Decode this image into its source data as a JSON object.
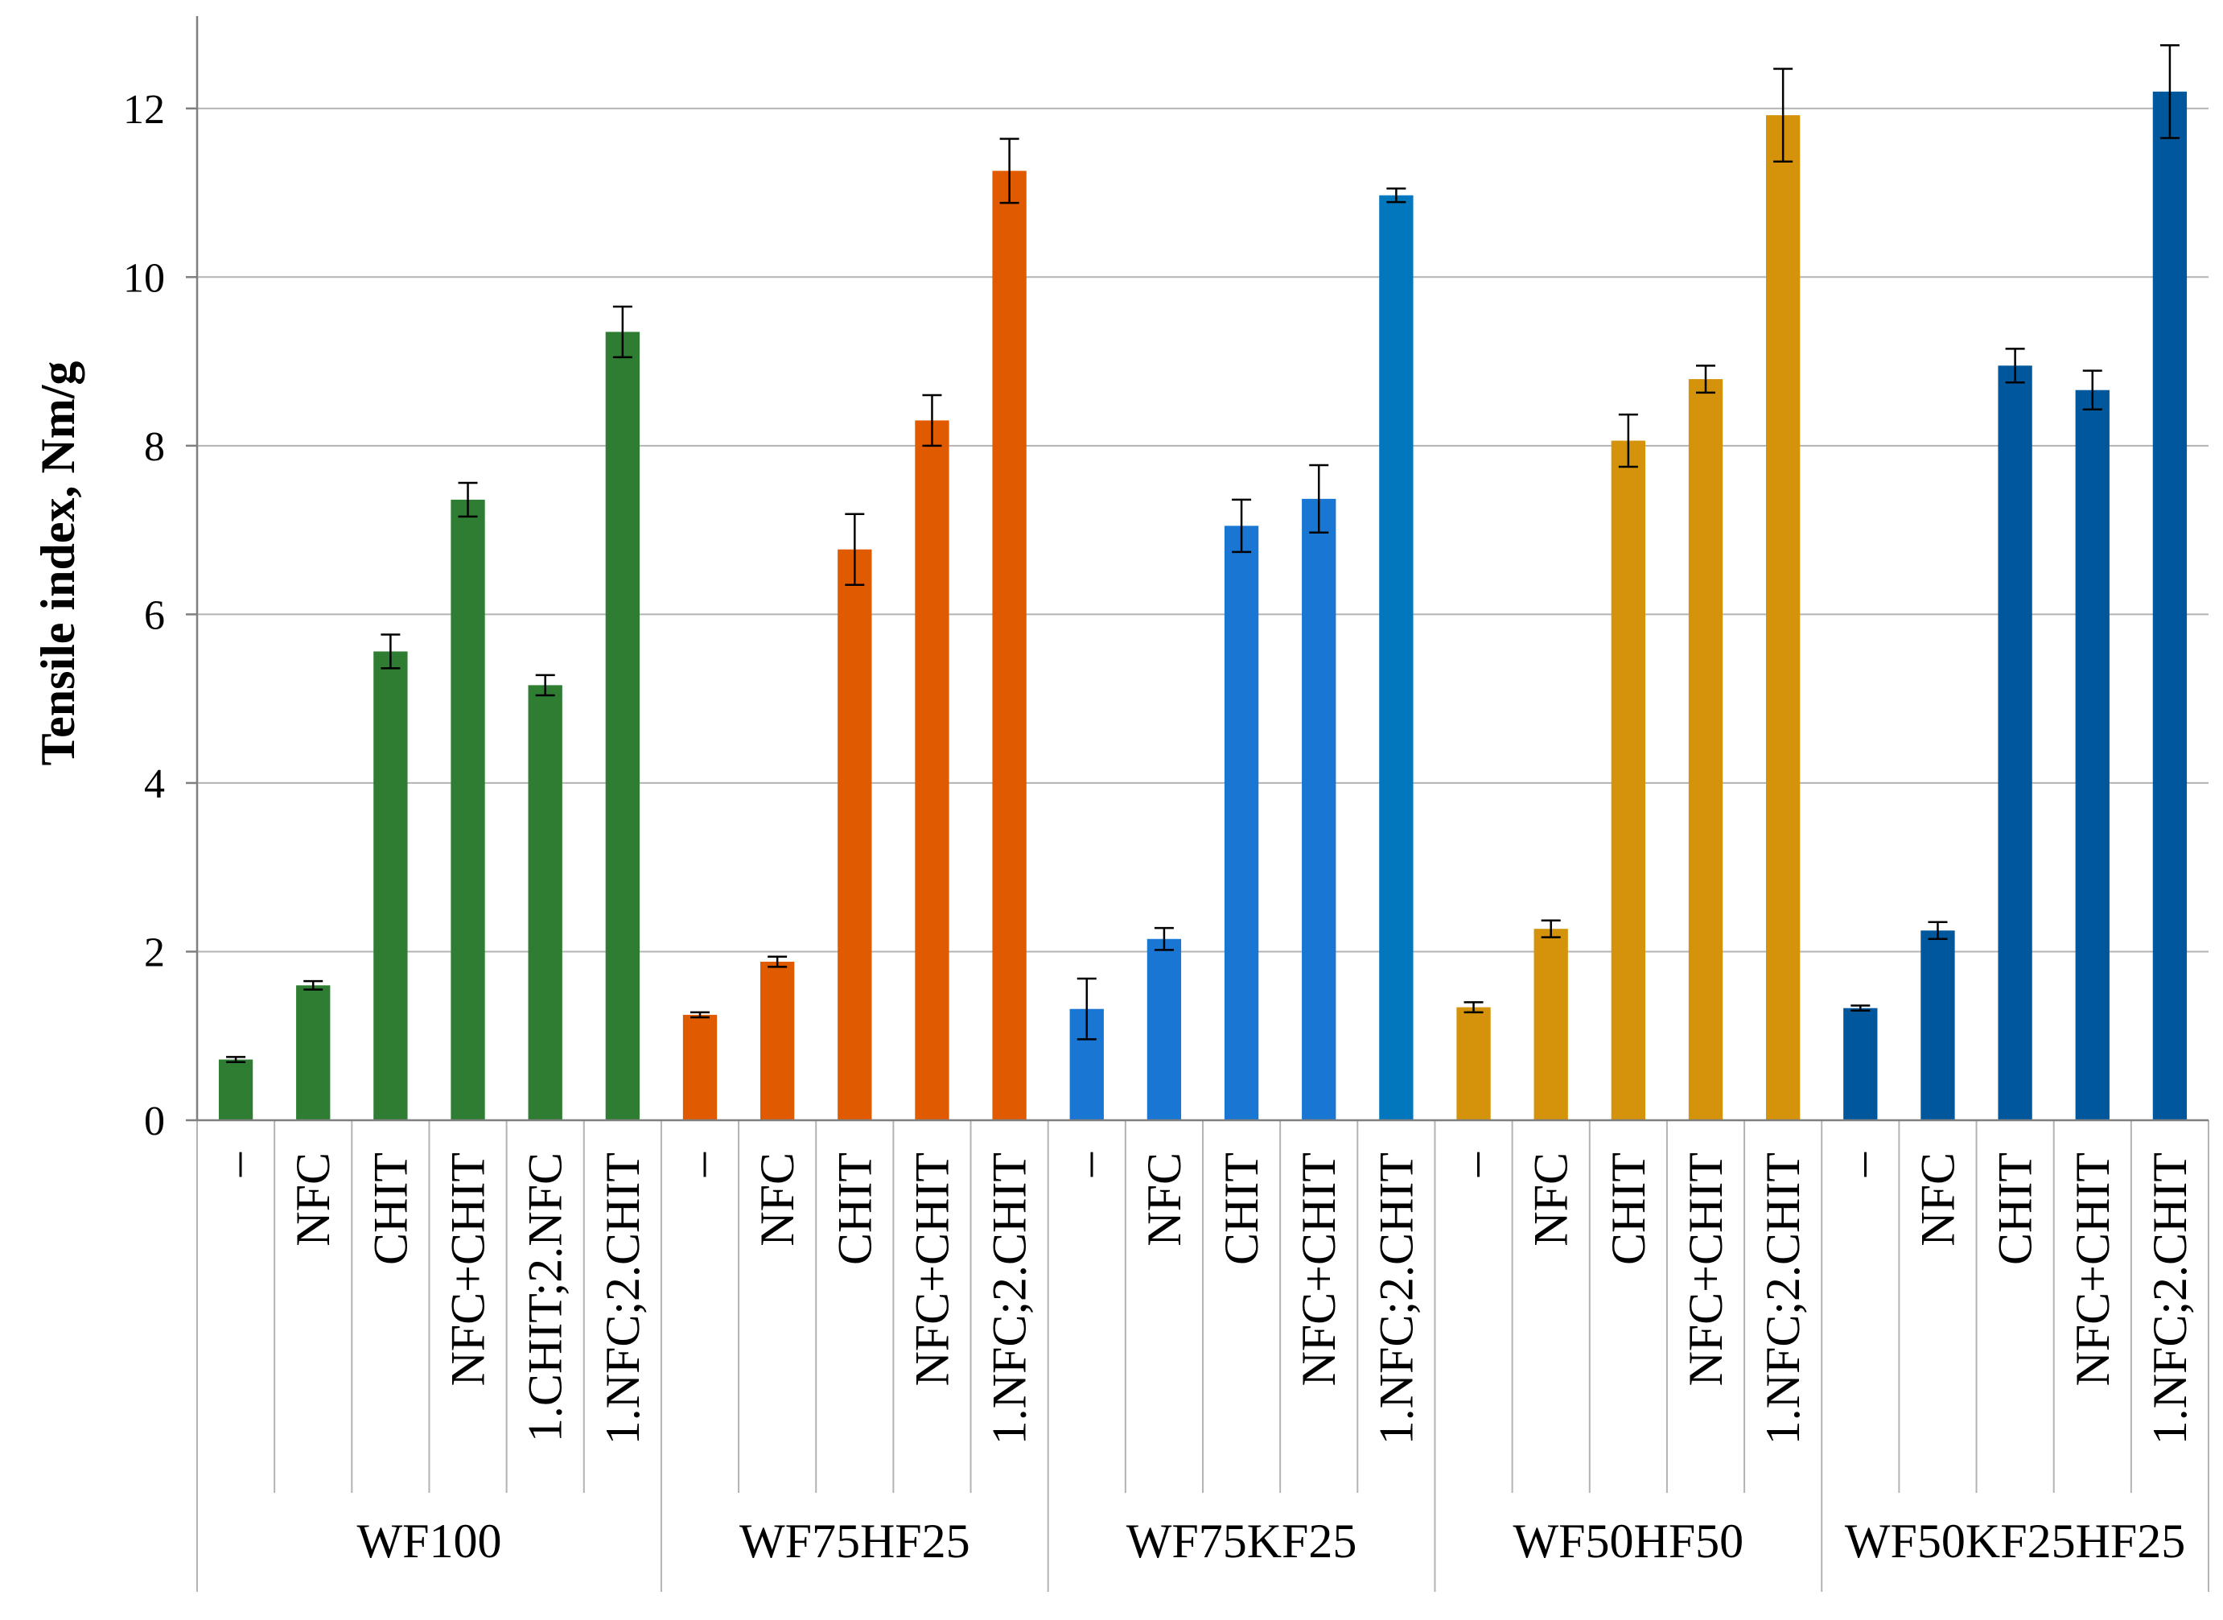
{
  "chart_data": {
    "type": "bar",
    "title": "",
    "xlabel": "",
    "ylabel": "Tensile index, Nm/g",
    "ylim": [
      0,
      13
    ],
    "yticks": [
      0,
      2,
      4,
      6,
      8,
      10,
      12
    ],
    "grid": "horizontal",
    "legend": "none",
    "groups": [
      {
        "name": "WF100",
        "color": "#2e7d32",
        "categories": [
          "–",
          "NFC",
          "CHIT",
          "NFC+CHIT",
          "1.CHIT;2.NFC",
          "1.NFC;2.CHIT"
        ],
        "values": [
          0.72,
          1.6,
          5.56,
          7.36,
          5.16,
          9.35
        ],
        "errors": [
          0.03,
          0.05,
          0.2,
          0.2,
          0.12,
          0.3
        ]
      },
      {
        "name": "WF75HF25",
        "color": "#e05a00",
        "categories": [
          "–",
          "NFC",
          "CHIT",
          "NFC+CHIT",
          "1.NFC;2.CHIT"
        ],
        "values": [
          1.25,
          1.88,
          6.77,
          8.3,
          11.26
        ],
        "errors": [
          0.03,
          0.06,
          0.42,
          0.3,
          0.38
        ]
      },
      {
        "name": "WF75KF25",
        "color": "#1976d2",
        "colors": [
          "#1976d2",
          "#1976d2",
          "#1976d2",
          "#1976d2",
          "#0277bd"
        ],
        "categories": [
          "–",
          "NFC",
          "CHIT",
          "NFC+CHIT",
          "1.NFC;2.CHIT"
        ],
        "values": [
          1.32,
          2.15,
          7.05,
          7.37,
          10.97
        ],
        "errors": [
          0.36,
          0.13,
          0.31,
          0.4,
          0.08
        ]
      },
      {
        "name": "WF50HF50",
        "color": "#d4930a",
        "categories": [
          "–",
          "NFC",
          "CHIT",
          "NFC+CHIT",
          "1.NFC;2.CHIT"
        ],
        "values": [
          1.34,
          2.27,
          8.06,
          8.79,
          11.92
        ],
        "errors": [
          0.06,
          0.1,
          0.31,
          0.16,
          0.55
        ]
      },
      {
        "name": "WF50KF25HF25",
        "color": "#01579b",
        "categories": [
          "–",
          "NFC",
          "CHIT",
          "NFC+CHIT",
          "1.NFC;2.CHIT"
        ],
        "values": [
          1.33,
          2.25,
          8.95,
          8.66,
          12.2
        ],
        "errors": [
          0.03,
          0.1,
          0.2,
          0.23,
          0.55
        ]
      }
    ]
  }
}
